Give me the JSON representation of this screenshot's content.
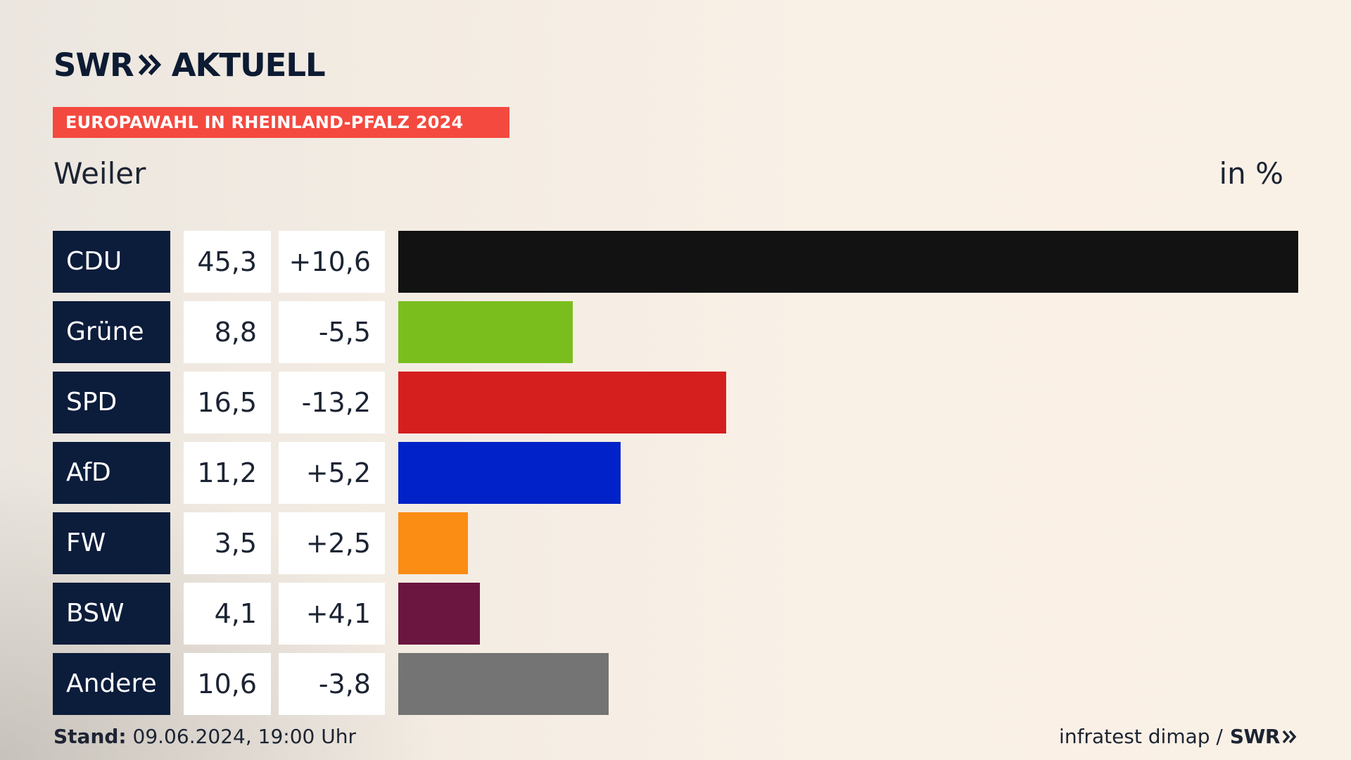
{
  "brand": {
    "name_left": "SWR",
    "name_right": "AKTUELL"
  },
  "banner": {
    "label": "EUROPAWAHL IN RHEINLAND-PFALZ 2024",
    "color": "#f4493f"
  },
  "header": {
    "place": "Weiler",
    "unit": "in %"
  },
  "chart_data": {
    "type": "bar",
    "title": "Weiler",
    "ylabel": "in %",
    "orientation": "horizontal",
    "categories": [
      "CDU",
      "Grüne",
      "SPD",
      "AfD",
      "FW",
      "BSW",
      "Andere"
    ],
    "values": [
      45.3,
      8.8,
      16.5,
      11.2,
      3.5,
      4.1,
      10.6
    ],
    "value_labels": [
      "45,3",
      "8,8",
      "16,5",
      "11,2",
      "3,5",
      "4,1",
      "10,6"
    ],
    "change_labels": [
      "+10,6",
      "-5,5",
      "-13,2",
      "+5,2",
      "+2,5",
      "+4,1",
      "-3,8"
    ],
    "changes": [
      10.6,
      -5.5,
      -13.2,
      5.2,
      2.5,
      4.1,
      -3.8
    ],
    "colors": [
      "#121212",
      "#7abe1e",
      "#d51e1e",
      "#0022c8",
      "#fb8c14",
      "#6a1640",
      "#747474"
    ],
    "xlim": [
      0,
      45.3
    ],
    "grid": false
  },
  "footer": {
    "stand_label": "Stand:",
    "stand_value": "09.06.2024, 19:00 Uhr",
    "source": "infratest dimap /",
    "source_brand": "SWR"
  }
}
